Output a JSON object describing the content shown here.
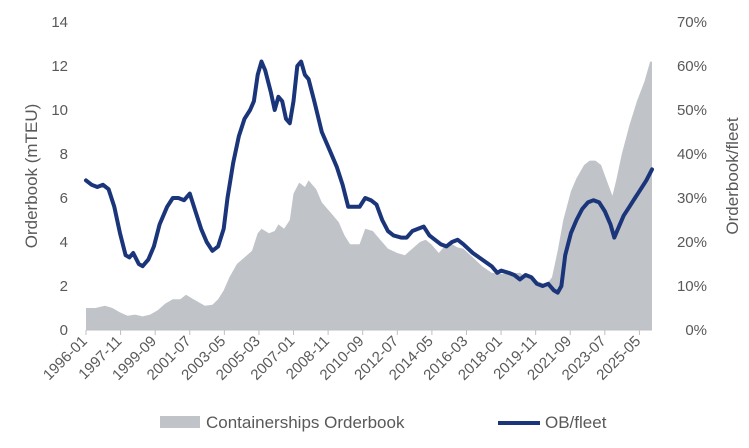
{
  "chart_data": {
    "type": "area+line",
    "title": "",
    "ylabel_left": "Orderbook (mTEU)",
    "ylabel_right": "Orderbook/fleet",
    "ylim_left": [
      0,
      14
    ],
    "ylim_right": [
      0,
      70
    ],
    "yticks_left": [
      "0",
      "2",
      "4",
      "6",
      "8",
      "10",
      "12",
      "14"
    ],
    "yticks_right": [
      "0%",
      "10%",
      "20%",
      "30%",
      "40%",
      "50%",
      "60%",
      "70%"
    ],
    "x_start": 1996.0,
    "x_end": 2026.0,
    "xticks": [
      "1996-01",
      "1997-11",
      "1999-09",
      "2001-07",
      "2003-05",
      "2005-03",
      "2007-01",
      "2008-11",
      "2010-09",
      "2012-07",
      "2014-05",
      "2016-03",
      "2018-01",
      "2019-11",
      "2021-09",
      "2023-07",
      "2025-05"
    ],
    "grid": false,
    "legend_position": "bottom",
    "colors": {
      "area": "#c0c3c8",
      "line": "#1b357a",
      "text": "#595959",
      "axis": "#bfbfbf"
    },
    "series": [
      {
        "name": "Containerships Orderbook",
        "kind": "area",
        "axis": "left",
        "points": [
          [
            1996.0,
            1.0
          ],
          [
            1996.5,
            1.0
          ],
          [
            1997.0,
            1.1
          ],
          [
            1997.4,
            1.0
          ],
          [
            1997.8,
            0.8
          ],
          [
            1998.2,
            0.65
          ],
          [
            1998.6,
            0.7
          ],
          [
            1999.0,
            0.62
          ],
          [
            1999.4,
            0.7
          ],
          [
            1999.8,
            0.9
          ],
          [
            2000.2,
            1.2
          ],
          [
            2000.6,
            1.4
          ],
          [
            2001.0,
            1.4
          ],
          [
            2001.3,
            1.6
          ],
          [
            2001.7,
            1.4
          ],
          [
            2002.0,
            1.25
          ],
          [
            2002.3,
            1.1
          ],
          [
            2002.7,
            1.15
          ],
          [
            2003.0,
            1.4
          ],
          [
            2003.3,
            1.8
          ],
          [
            2003.6,
            2.4
          ],
          [
            2004.0,
            3.0
          ],
          [
            2004.4,
            3.3
          ],
          [
            2004.8,
            3.6
          ],
          [
            2005.1,
            4.4
          ],
          [
            2005.3,
            4.6
          ],
          [
            2005.7,
            4.4
          ],
          [
            2006.0,
            4.5
          ],
          [
            2006.2,
            4.8
          ],
          [
            2006.5,
            4.6
          ],
          [
            2006.8,
            5.0
          ],
          [
            2007.0,
            6.2
          ],
          [
            2007.3,
            6.7
          ],
          [
            2007.6,
            6.5
          ],
          [
            2007.8,
            6.8
          ],
          [
            2008.2,
            6.4
          ],
          [
            2008.5,
            5.8
          ],
          [
            2009.0,
            5.3
          ],
          [
            2009.4,
            4.9
          ],
          [
            2009.7,
            4.3
          ],
          [
            2010.0,
            3.9
          ],
          [
            2010.5,
            3.9
          ],
          [
            2010.8,
            4.6
          ],
          [
            2011.2,
            4.5
          ],
          [
            2011.5,
            4.2
          ],
          [
            2012.0,
            3.7
          ],
          [
            2012.5,
            3.5
          ],
          [
            2012.9,
            3.4
          ],
          [
            2013.3,
            3.7
          ],
          [
            2013.7,
            4.0
          ],
          [
            2014.0,
            4.1
          ],
          [
            2014.3,
            3.9
          ],
          [
            2014.7,
            3.5
          ],
          [
            2015.0,
            3.8
          ],
          [
            2015.3,
            3.95
          ],
          [
            2015.7,
            3.75
          ],
          [
            2016.0,
            3.7
          ],
          [
            2016.5,
            3.3
          ],
          [
            2017.0,
            2.9
          ],
          [
            2017.5,
            2.6
          ],
          [
            2018.0,
            2.55
          ],
          [
            2018.5,
            2.55
          ],
          [
            2019.0,
            2.6
          ],
          [
            2019.3,
            2.4
          ],
          [
            2019.7,
            2.3
          ],
          [
            2020.0,
            2.2
          ],
          [
            2020.4,
            2.05
          ],
          [
            2020.7,
            2.4
          ],
          [
            2021.0,
            3.6
          ],
          [
            2021.3,
            5.0
          ],
          [
            2021.7,
            6.3
          ],
          [
            2022.0,
            6.9
          ],
          [
            2022.4,
            7.5
          ],
          [
            2022.7,
            7.7
          ],
          [
            2023.0,
            7.7
          ],
          [
            2023.3,
            7.5
          ],
          [
            2023.6,
            6.8
          ],
          [
            2023.9,
            6.1
          ],
          [
            2024.1,
            6.8
          ],
          [
            2024.4,
            8.0
          ],
          [
            2024.8,
            9.3
          ],
          [
            2025.2,
            10.4
          ],
          [
            2025.6,
            11.3
          ],
          [
            2025.9,
            12.2
          ],
          [
            2026.0,
            12.2
          ]
        ]
      },
      {
        "name": "OB/fleet",
        "kind": "line",
        "axis": "right",
        "points": [
          [
            1996.0,
            34
          ],
          [
            1996.3,
            33
          ],
          [
            1996.6,
            32.5
          ],
          [
            1996.9,
            33
          ],
          [
            1997.2,
            32
          ],
          [
            1997.5,
            28
          ],
          [
            1997.8,
            22
          ],
          [
            1998.1,
            17
          ],
          [
            1998.3,
            16.5
          ],
          [
            1998.5,
            17.5
          ],
          [
            1998.8,
            15
          ],
          [
            1999.0,
            14.5
          ],
          [
            1999.3,
            16
          ],
          [
            1999.6,
            19
          ],
          [
            1999.9,
            24
          ],
          [
            2000.3,
            28
          ],
          [
            2000.6,
            30
          ],
          [
            2000.9,
            30
          ],
          [
            2001.2,
            29.5
          ],
          [
            2001.5,
            31
          ],
          [
            2001.8,
            27
          ],
          [
            2002.1,
            23
          ],
          [
            2002.4,
            20
          ],
          [
            2002.7,
            18
          ],
          [
            2003.0,
            19
          ],
          [
            2003.3,
            23
          ],
          [
            2003.5,
            30
          ],
          [
            2003.8,
            38
          ],
          [
            2004.1,
            44
          ],
          [
            2004.4,
            48
          ],
          [
            2004.7,
            50
          ],
          [
            2004.9,
            52
          ],
          [
            2005.1,
            58
          ],
          [
            2005.3,
            61
          ],
          [
            2005.5,
            59
          ],
          [
            2005.8,
            54
          ],
          [
            2006.0,
            50
          ],
          [
            2006.2,
            53
          ],
          [
            2006.4,
            52
          ],
          [
            2006.6,
            48
          ],
          [
            2006.8,
            47
          ],
          [
            2007.0,
            52
          ],
          [
            2007.2,
            60
          ],
          [
            2007.4,
            61
          ],
          [
            2007.6,
            58
          ],
          [
            2007.8,
            57
          ],
          [
            2008.1,
            52
          ],
          [
            2008.5,
            45
          ],
          [
            2008.9,
            41
          ],
          [
            2009.3,
            37
          ],
          [
            2009.6,
            33
          ],
          [
            2009.9,
            28
          ],
          [
            2010.2,
            28
          ],
          [
            2010.5,
            28
          ],
          [
            2010.8,
            30
          ],
          [
            2011.1,
            29.5
          ],
          [
            2011.4,
            28.5
          ],
          [
            2011.7,
            25
          ],
          [
            2012.0,
            22.5
          ],
          [
            2012.3,
            21.5
          ],
          [
            2012.7,
            21
          ],
          [
            2013.0,
            21
          ],
          [
            2013.3,
            22.5
          ],
          [
            2013.6,
            23
          ],
          [
            2013.9,
            23.5
          ],
          [
            2014.2,
            21.5
          ],
          [
            2014.5,
            20.5
          ],
          [
            2014.8,
            19.5
          ],
          [
            2015.1,
            19
          ],
          [
            2015.4,
            20
          ],
          [
            2015.7,
            20.5
          ],
          [
            2016.0,
            19.5
          ],
          [
            2016.5,
            17.5
          ],
          [
            2017.0,
            16
          ],
          [
            2017.5,
            14.5
          ],
          [
            2017.8,
            13
          ],
          [
            2018.0,
            13.5
          ],
          [
            2018.4,
            13
          ],
          [
            2018.7,
            12.5
          ],
          [
            2019.0,
            11.5
          ],
          [
            2019.3,
            12.5
          ],
          [
            2019.6,
            12
          ],
          [
            2019.9,
            10.5
          ],
          [
            2020.2,
            10
          ],
          [
            2020.5,
            10.5
          ],
          [
            2020.8,
            9
          ],
          [
            2021.0,
            8.5
          ],
          [
            2021.2,
            10
          ],
          [
            2021.4,
            17
          ],
          [
            2021.7,
            22
          ],
          [
            2022.0,
            25
          ],
          [
            2022.3,
            27.5
          ],
          [
            2022.6,
            29
          ],
          [
            2022.9,
            29.5
          ],
          [
            2023.2,
            29
          ],
          [
            2023.5,
            27
          ],
          [
            2023.8,
            24
          ],
          [
            2024.0,
            21
          ],
          [
            2024.2,
            23
          ],
          [
            2024.5,
            26
          ],
          [
            2024.8,
            28
          ],
          [
            2025.1,
            30
          ],
          [
            2025.4,
            32
          ],
          [
            2025.7,
            34
          ],
          [
            2026.0,
            36.5
          ]
        ]
      }
    ]
  }
}
